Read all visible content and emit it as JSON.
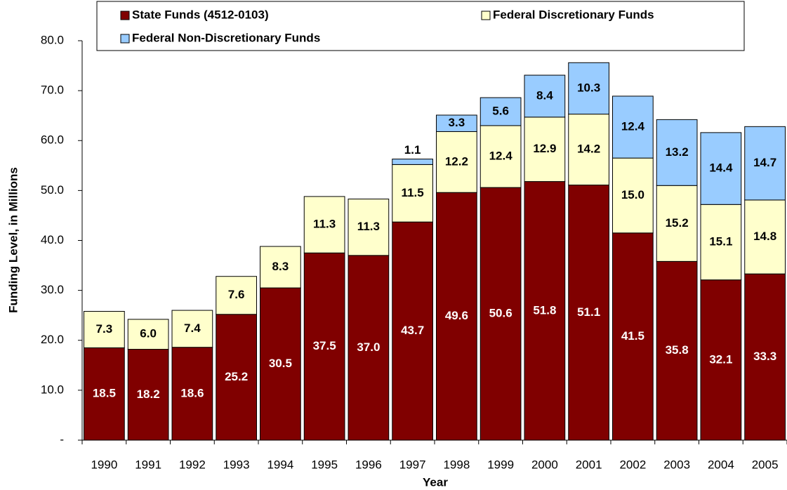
{
  "chart_data": {
    "type": "stacked_bar",
    "x_label": "Year",
    "y_label": "Funding Level, in Millions",
    "categories": [
      "1990",
      "1991",
      "1992",
      "1993",
      "1994",
      "1995",
      "1996",
      "1997",
      "1998",
      "1999",
      "2000",
      "2001",
      "2002",
      "2003",
      "2004",
      "2005"
    ],
    "series": [
      {
        "name": "State Funds (4512-0103)",
        "color": "#800000",
        "label_color": "#ffffff",
        "values": [
          18.5,
          18.2,
          18.6,
          25.2,
          30.5,
          37.5,
          37.0,
          43.7,
          49.6,
          50.6,
          51.8,
          51.1,
          41.5,
          35.8,
          32.1,
          33.3
        ],
        "value_labels": [
          "18.5",
          "18.2",
          "18.6",
          "25.2",
          "30.5",
          "37.5",
          "37.0",
          "43.7",
          "49.6",
          "50.6",
          "51.8",
          "51.1",
          "41.5",
          "35.8",
          "32.1",
          "33.3"
        ]
      },
      {
        "name": "Federal Discretionary Funds",
        "color": "#ffffcc",
        "label_color": "#000000",
        "values": [
          7.3,
          6.0,
          7.4,
          7.6,
          8.3,
          11.3,
          11.3,
          11.5,
          12.2,
          12.4,
          12.9,
          14.2,
          15.0,
          15.2,
          15.1,
          14.8
        ],
        "value_labels": [
          "7.3",
          "6.0",
          "7.4",
          "7.6",
          "8.3",
          "11.3",
          "11.3",
          "11.5",
          "12.2",
          "12.4",
          "12.9",
          "14.2",
          "15.0",
          "15.2",
          "15.1",
          "14.8"
        ]
      },
      {
        "name": "Federal Non-Discretionary Funds",
        "color": "#99ccff",
        "label_color": "#000000",
        "values": [
          null,
          null,
          null,
          null,
          null,
          null,
          null,
          1.1,
          3.3,
          5.6,
          8.4,
          10.3,
          12.4,
          13.2,
          14.4,
          14.7
        ],
        "value_labels": [
          null,
          null,
          null,
          null,
          null,
          null,
          null,
          "1.1",
          "3.3",
          "5.6",
          "8.4",
          "10.3",
          "12.4",
          "13.2",
          "14.4",
          "14.7"
        ]
      }
    ],
    "ylim": [
      0,
      80
    ],
    "yticks": [
      {
        "value": 0,
        "label": "-"
      },
      {
        "value": 10,
        "label": "10.0"
      },
      {
        "value": 20,
        "label": "20.0"
      },
      {
        "value": 30,
        "label": "30.0"
      },
      {
        "value": 40,
        "label": "40.0"
      },
      {
        "value": 50,
        "label": "50.0"
      },
      {
        "value": 60,
        "label": "60.0"
      },
      {
        "value": 70,
        "label": "70.0"
      },
      {
        "value": 80,
        "label": "80.0"
      }
    ],
    "legend": "top"
  }
}
